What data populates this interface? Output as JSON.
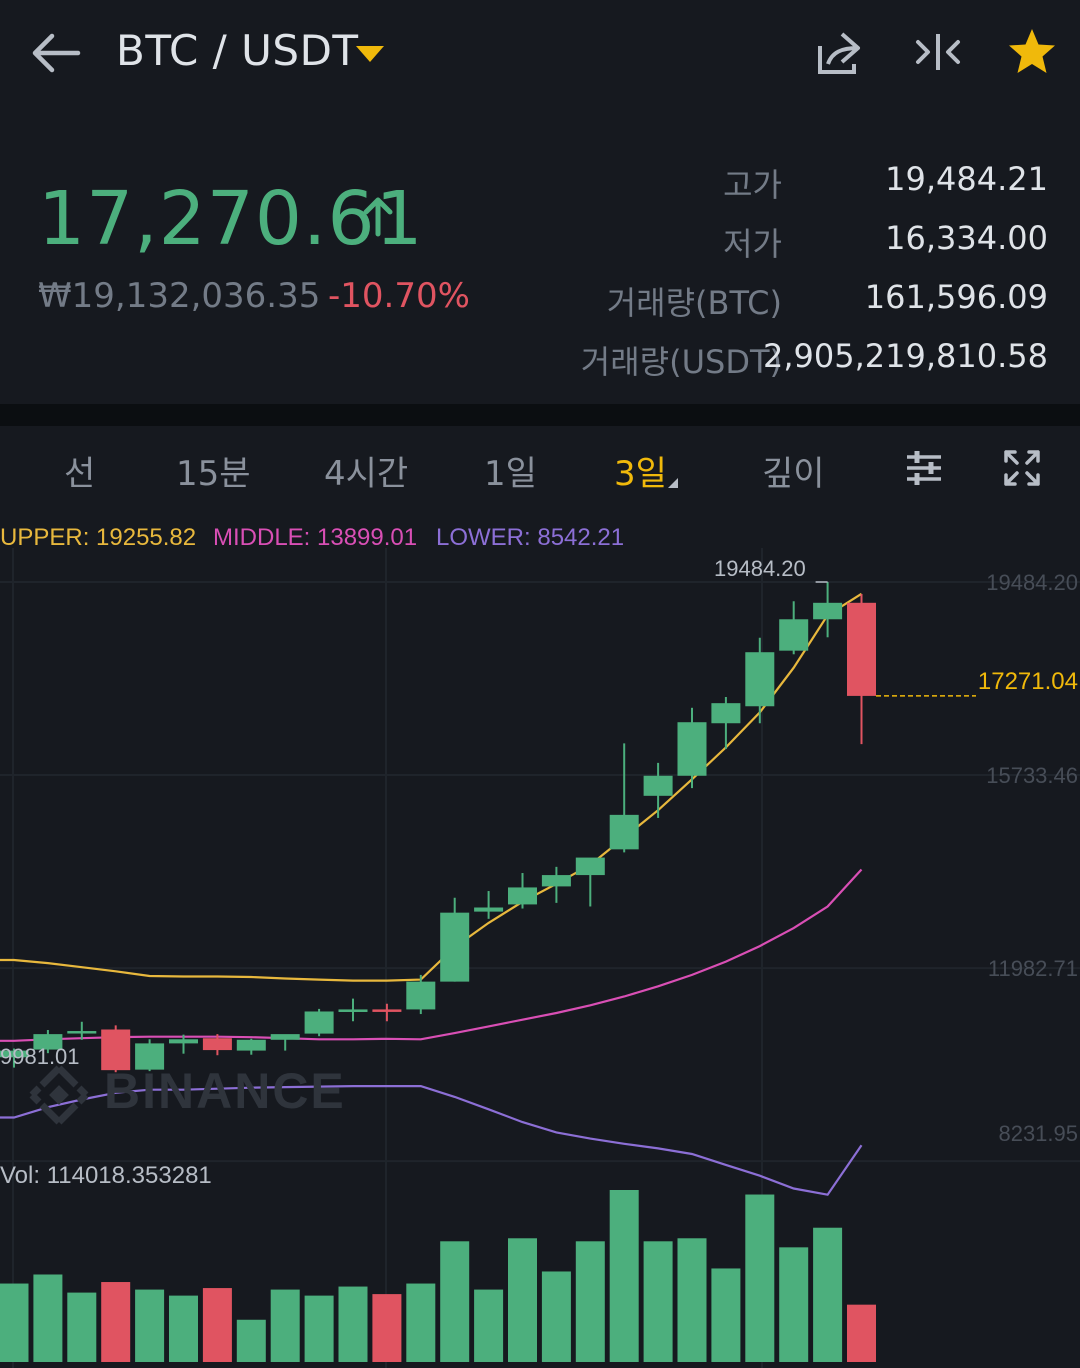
{
  "header": {
    "pair": "BTC / USDT",
    "icons": [
      "back-arrow-icon",
      "dropdown-caret-icon",
      "share-icon",
      "compare-icon",
      "favorite-star-icon"
    ]
  },
  "ticker": {
    "last_price": "17,270.61",
    "fiat_price": "₩19,132,036.35",
    "change_pct": "-10.70%",
    "stats": [
      {
        "label": "고가",
        "value": "19,484.21"
      },
      {
        "label": "저가",
        "value": "16,334.00"
      },
      {
        "label": "거래량(BTC)",
        "value": "161,596.09"
      },
      {
        "label": "거래량(USDT)",
        "value": "2,905,219,810.58"
      }
    ]
  },
  "tabs": {
    "items": [
      "선",
      "15분",
      "4시간",
      "1일",
      "3일",
      "깊이"
    ],
    "active": "3일",
    "icons": [
      "settings-sliders-icon",
      "fullscreen-icon"
    ]
  },
  "indicator_legend": {
    "upper": "UPPER: 19255.82",
    "middle": "MIDDLE: 13899.01",
    "lower": "LOWER: 8542.21"
  },
  "colors": {
    "up": "#4caf7d",
    "down": "#e05461",
    "accent": "#f0b90b",
    "upper_band": "#e8b83d",
    "middle_band": "#d94fb5",
    "lower_band": "#8c6fd6"
  },
  "chart": {
    "axis_labels": [
      "19484.20",
      "15733.46",
      "11982.71",
      "8231.95"
    ],
    "current_price_tag": "17271.04",
    "high_marker": "19484.20",
    "low_marker": "9981.01",
    "watermark": "BINANCE",
    "volume_label": "Vol: 114018.353281"
  },
  "chart_data": {
    "type": "candlestick",
    "interval": "3일",
    "series": [
      {
        "name": "candles",
        "values": [
          {
            "o": 10250,
            "h": 10420,
            "l": 10050,
            "c": 10380
          },
          {
            "o": 10400,
            "h": 10780,
            "l": 10330,
            "c": 10700
          },
          {
            "o": 10730,
            "h": 10940,
            "l": 10590,
            "c": 10760
          },
          {
            "o": 10790,
            "h": 10870,
            "l": 9960,
            "c": 10000
          },
          {
            "o": 10010,
            "h": 10600,
            "l": 9981.01,
            "c": 10520
          },
          {
            "o": 10520,
            "h": 10690,
            "l": 10320,
            "c": 10600
          },
          {
            "o": 10620,
            "h": 10700,
            "l": 10290,
            "c": 10390
          },
          {
            "o": 10380,
            "h": 10610,
            "l": 10300,
            "c": 10590
          },
          {
            "o": 10590,
            "h": 10690,
            "l": 10380,
            "c": 10700
          },
          {
            "o": 10710,
            "h": 11190,
            "l": 10660,
            "c": 11140
          },
          {
            "o": 11130,
            "h": 11390,
            "l": 10950,
            "c": 11180
          },
          {
            "o": 11180,
            "h": 11290,
            "l": 10950,
            "c": 11170
          },
          {
            "o": 11180,
            "h": 11850,
            "l": 11090,
            "c": 11720
          },
          {
            "o": 11720,
            "h": 13350,
            "l": 11720,
            "c": 13060
          },
          {
            "o": 13080,
            "h": 13480,
            "l": 12940,
            "c": 13160
          },
          {
            "o": 13220,
            "h": 13830,
            "l": 13140,
            "c": 13550
          },
          {
            "o": 13570,
            "h": 13950,
            "l": 13250,
            "c": 13790
          },
          {
            "o": 13790,
            "h": 14020,
            "l": 13180,
            "c": 14130
          },
          {
            "o": 14290,
            "h": 16350,
            "l": 14230,
            "c": 14960
          },
          {
            "o": 15330,
            "h": 15970,
            "l": 14900,
            "c": 15720
          },
          {
            "o": 15720,
            "h": 17040,
            "l": 15480,
            "c": 16760
          },
          {
            "o": 16740,
            "h": 17250,
            "l": 16240,
            "c": 17130
          },
          {
            "o": 17070,
            "h": 18400,
            "l": 16740,
            "c": 18120
          },
          {
            "o": 18150,
            "h": 19110,
            "l": 18080,
            "c": 18760
          },
          {
            "o": 18760,
            "h": 19484.2,
            "l": 18410,
            "c": 19080
          },
          {
            "o": 19080,
            "h": 19250,
            "l": 16334,
            "c": 17271.04
          }
        ]
      },
      {
        "name": "UPPER",
        "values": [
          12140,
          12080,
          12000,
          11920,
          11830,
          11820,
          11820,
          11810,
          11780,
          11760,
          11740,
          11740,
          11760,
          12390,
          12860,
          13270,
          13620,
          13990,
          14520,
          15050,
          15650,
          16270,
          16950,
          17820,
          18840,
          19255.82
        ]
      },
      {
        "name": "MIDDLE",
        "values": [
          10570,
          10600,
          10620,
          10640,
          10650,
          10650,
          10650,
          10640,
          10620,
          10600,
          10600,
          10610,
          10600,
          10720,
          10850,
          10980,
          11110,
          11260,
          11430,
          11630,
          11850,
          12110,
          12410,
          12760,
          13180,
          13899.01
        ]
      },
      {
        "name": "LOWER",
        "values": [
          9080,
          9280,
          9430,
          9560,
          9620,
          9620,
          9640,
          9660,
          9670,
          9680,
          9690,
          9690,
          9690,
          9480,
          9240,
          8990,
          8790,
          8670,
          8570,
          8480,
          8370,
          8160,
          7950,
          7700,
          7580,
          8542.21
        ]
      },
      {
        "name": "Vol",
        "values": [
          52000,
          58000,
          46000,
          53000,
          48000,
          44000,
          49000,
          28000,
          48000,
          44000,
          50000,
          45000,
          52000,
          80000,
          48000,
          82000,
          60000,
          80000,
          114000,
          80000,
          82000,
          62000,
          111000,
          76000,
          89000,
          38000
        ]
      }
    ],
    "ylim": [
      6500,
      21000
    ],
    "ticks": [
      19484.2,
      15733.46,
      11982.71,
      8231.95
    ]
  }
}
